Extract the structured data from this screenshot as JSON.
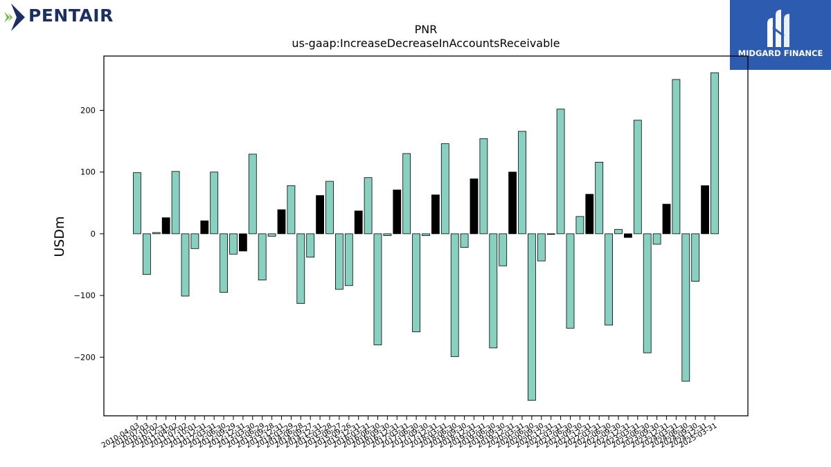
{
  "brand_left": {
    "name": "PENTAIR",
    "icon": "pentair-diamond-logo-icon",
    "colors": [
      "#1b2f63",
      "#6cb33e"
    ]
  },
  "brand_right": {
    "name": "MIDGARD FINANCE",
    "icon": "midgard-m-logo-icon",
    "background": "#2d5bb0"
  },
  "chart_data": {
    "type": "bar",
    "title": "PNR",
    "subtitle": "us-gaap:IncreaseDecreaseInAccountsReceivable",
    "ylabel": "USDm",
    "xlabel": "",
    "ylim": [
      -295,
      288
    ],
    "yticks": [
      -200,
      -100,
      0,
      100,
      200
    ],
    "grid": false,
    "colors": {
      "quarter": "#88d0c0",
      "annual": "#000000",
      "edge": "#000000"
    },
    "categories": [
      "2010-04-03",
      "2010-07-03",
      "2010-10-02",
      "2010-12-31",
      "2011-04-02",
      "2011-07-02",
      "2011-10-01",
      "2011-12-31",
      "2012-03-31",
      "2012-06-30",
      "2012-09-29",
      "2012-12-31",
      "2013-03-30",
      "2013-06-29",
      "2013-09-28",
      "2013-12-31",
      "2014-03-29",
      "2014-06-28",
      "2014-09-27",
      "2014-12-31",
      "2015-03-28",
      "2015-06-27",
      "2015-09-26",
      "2015-12-31",
      "2016-03-31",
      "2016-06-30",
      "2016-09-30",
      "2016-12-31",
      "2017-03-31",
      "2017-06-30",
      "2017-09-30",
      "2017-12-31",
      "2018-03-31",
      "2018-06-30",
      "2018-09-30",
      "2018-12-31",
      "2019-03-31",
      "2019-06-30",
      "2019-09-30",
      "2019-12-31",
      "2020-03-31",
      "2020-06-30",
      "2020-09-30",
      "2020-12-31",
      "2021-03-31",
      "2021-06-30",
      "2021-09-30",
      "2021-12-31",
      "2022-03-31",
      "2022-06-30",
      "2022-09-30",
      "2022-12-31",
      "2023-03-31",
      "2023-06-30",
      "2023-09-30",
      "2023-12-31",
      "2024-03-31",
      "2024-06-30",
      "2024-09-30",
      "2024-12-31",
      "2025-03-31"
    ],
    "values": [
      99,
      -66,
      2,
      26,
      101,
      -101,
      -24,
      21,
      100,
      -95,
      -33,
      -28,
      129,
      -75,
      -4,
      39,
      78,
      -113,
      -38,
      62,
      85,
      -90,
      -84,
      37,
      91,
      -180,
      -3,
      71,
      130,
      -159,
      -3,
      63,
      146,
      -199,
      -22,
      89,
      154,
      -185,
      -52,
      100,
      166,
      -270,
      -44,
      -1,
      202,
      -153,
      28,
      64,
      116,
      -148,
      7,
      -6,
      184,
      -193,
      -17,
      48,
      250,
      -239,
      -77,
      78,
      261
    ],
    "annual": [
      false,
      false,
      false,
      true,
      false,
      false,
      false,
      true,
      false,
      false,
      false,
      true,
      false,
      false,
      false,
      true,
      false,
      false,
      false,
      true,
      false,
      false,
      false,
      true,
      false,
      false,
      false,
      true,
      false,
      false,
      false,
      true,
      false,
      false,
      false,
      true,
      false,
      false,
      false,
      true,
      false,
      false,
      false,
      true,
      false,
      false,
      false,
      true,
      false,
      false,
      false,
      true,
      false,
      false,
      false,
      true,
      false,
      false,
      false,
      true,
      false
    ]
  }
}
